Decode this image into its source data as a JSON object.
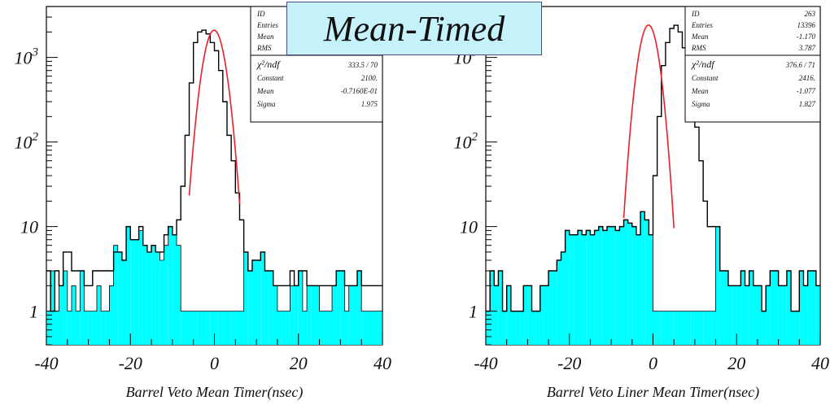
{
  "banner": {
    "text": "Mean-Timed"
  },
  "colors": {
    "fill": "#00ffff",
    "line": "#000000",
    "fit": "#e8202a",
    "banner_bg": "#c6f3fb"
  },
  "chart_data": [
    {
      "type": "area",
      "xlabel": "Barrel Veto Mean Timer(nsec)",
      "ylabel": "",
      "xlim": [
        -40,
        40
      ],
      "ylim": [
        0.4,
        4000
      ],
      "y_scale": "log",
      "x_ticks": [
        "-40",
        "-20",
        "0",
        "20",
        "40"
      ],
      "y_ticks": [
        {
          "label": "1",
          "value": 1
        },
        {
          "label": "10",
          "value": 10
        },
        {
          "label": "10 2",
          "value": 100
        },
        {
          "label": "10 3",
          "value": 1000
        }
      ],
      "stats_rows": [
        {
          "k": "ID",
          "v": ""
        },
        {
          "k": "Entries",
          "v": ""
        },
        {
          "k": "Mean",
          "v": ""
        },
        {
          "k": "RMS",
          "v": ""
        }
      ],
      "fit_rows": [
        {
          "k": "χ²/ndf",
          "v": "333.5  /  70"
        },
        {
          "k": "Constant",
          "v": "2100."
        },
        {
          "k": "Mean",
          "v": "-0.7160E-01"
        },
        {
          "k": "Sigma",
          "v": "1.975"
        }
      ],
      "fit": {
        "constant": 2100,
        "mean": -0.0716,
        "sigma": 1.975,
        "range": [
          -6,
          6
        ]
      },
      "bin_width": 1,
      "x_start": -40,
      "series": [
        {
          "values": [
            1,
            3,
            1,
            2,
            3,
            1,
            2,
            1,
            3,
            1,
            1,
            1,
            2,
            1,
            1,
            2,
            6,
            5,
            4,
            10,
            7,
            7,
            9,
            6,
            5,
            6,
            5,
            4,
            6,
            10,
            8,
            6,
            1,
            1,
            1,
            1,
            1,
            1,
            1,
            1,
            1,
            1,
            1,
            1,
            1,
            1,
            1,
            5,
            3,
            4,
            4,
            5,
            3,
            3,
            2,
            1,
            1,
            1,
            2,
            2,
            3,
            1,
            2,
            2,
            2,
            1,
            1,
            1,
            2,
            3,
            3,
            1,
            2,
            2,
            3,
            1,
            1,
            1,
            1,
            1
          ]
        },
        {
          "values": [
            3,
            1,
            3,
            2,
            5,
            5,
            3,
            3,
            3,
            2,
            2,
            3,
            3,
            3,
            3,
            3,
            5,
            5,
            4,
            10,
            7,
            7,
            10,
            6,
            5,
            6,
            5,
            5,
            8,
            10,
            8,
            12,
            30,
            120,
            500,
            1500,
            2000,
            2100,
            1900,
            1500,
            1200,
            700,
            300,
            120,
            60,
            25,
            12,
            5,
            3,
            4,
            4,
            5,
            3,
            3,
            2,
            2,
            2,
            2,
            3,
            2,
            3,
            3,
            2,
            2,
            2,
            2,
            2,
            2,
            2,
            3,
            3,
            2,
            2,
            2,
            3,
            2,
            2,
            2,
            2,
            2
          ]
        }
      ]
    },
    {
      "type": "area",
      "xlabel": "Barrel Veto Liner Mean Timer(nsec)",
      "ylabel": "",
      "xlim": [
        -40,
        40
      ],
      "ylim": [
        0.4,
        4000
      ],
      "y_scale": "log",
      "x_ticks": [
        "-40",
        "-20",
        "0",
        "20",
        "40"
      ],
      "y_ticks": [
        {
          "label": "1",
          "value": 1
        },
        {
          "label": "10",
          "value": 10
        },
        {
          "label": "10 2",
          "value": 100
        },
        {
          "label": "10 3",
          "value": 1000
        }
      ],
      "stats_rows": [
        {
          "k": "ID",
          "v": "263"
        },
        {
          "k": "Entries",
          "v": "13396"
        },
        {
          "k": "Mean",
          "v": "-1.170"
        },
        {
          "k": "RMS",
          "v": "3.787"
        }
      ],
      "fit_rows": [
        {
          "k": "χ²/ndf",
          "v": "376.6  /  71"
        },
        {
          "k": "Constant",
          "v": "2416."
        },
        {
          "k": "Mean",
          "v": "-1.077"
        },
        {
          "k": "Sigma",
          "v": "1.827"
        }
      ],
      "fit": {
        "constant": 2416,
        "mean": -1.077,
        "sigma": 1.827,
        "range": [
          -7,
          5
        ]
      },
      "bin_width": 1,
      "x_start": -40,
      "series": [
        {
          "values": [
            1,
            3,
            2,
            3,
            1,
            2,
            1,
            1,
            1,
            2,
            2,
            1,
            1,
            2,
            2,
            3,
            3,
            4,
            5,
            9,
            8,
            8,
            9,
            8,
            9,
            8,
            9,
            10,
            9,
            10,
            10,
            9,
            10,
            12,
            11,
            10,
            8,
            15,
            12,
            8,
            1,
            1,
            1,
            1,
            1,
            1,
            1,
            1,
            1,
            1,
            1,
            1,
            1,
            1,
            1,
            10,
            3,
            3,
            2,
            2,
            2,
            3,
            2,
            3,
            2,
            2,
            1,
            2,
            3,
            3,
            2,
            2,
            3,
            1,
            1,
            3,
            2,
            3,
            3,
            2
          ]
        },
        {
          "values": [
            1,
            3,
            2,
            3,
            1,
            2,
            1,
            1,
            1,
            2,
            2,
            1,
            1,
            2,
            2,
            3,
            3,
            4,
            5,
            9,
            8,
            8,
            9,
            8,
            9,
            8,
            9,
            10,
            9,
            10,
            10,
            9,
            10,
            12,
            11,
            10,
            8,
            15,
            12,
            8,
            40,
            200,
            800,
            1500,
            2200,
            2400,
            2000,
            1300,
            700,
            300,
            150,
            60,
            20,
            10,
            10,
            10,
            3,
            3,
            2,
            2,
            2,
            3,
            2,
            3,
            2,
            2,
            1,
            2,
            3,
            3,
            2,
            2,
            3,
            1,
            1,
            3,
            2,
            3,
            3,
            2
          ]
        }
      ]
    }
  ]
}
